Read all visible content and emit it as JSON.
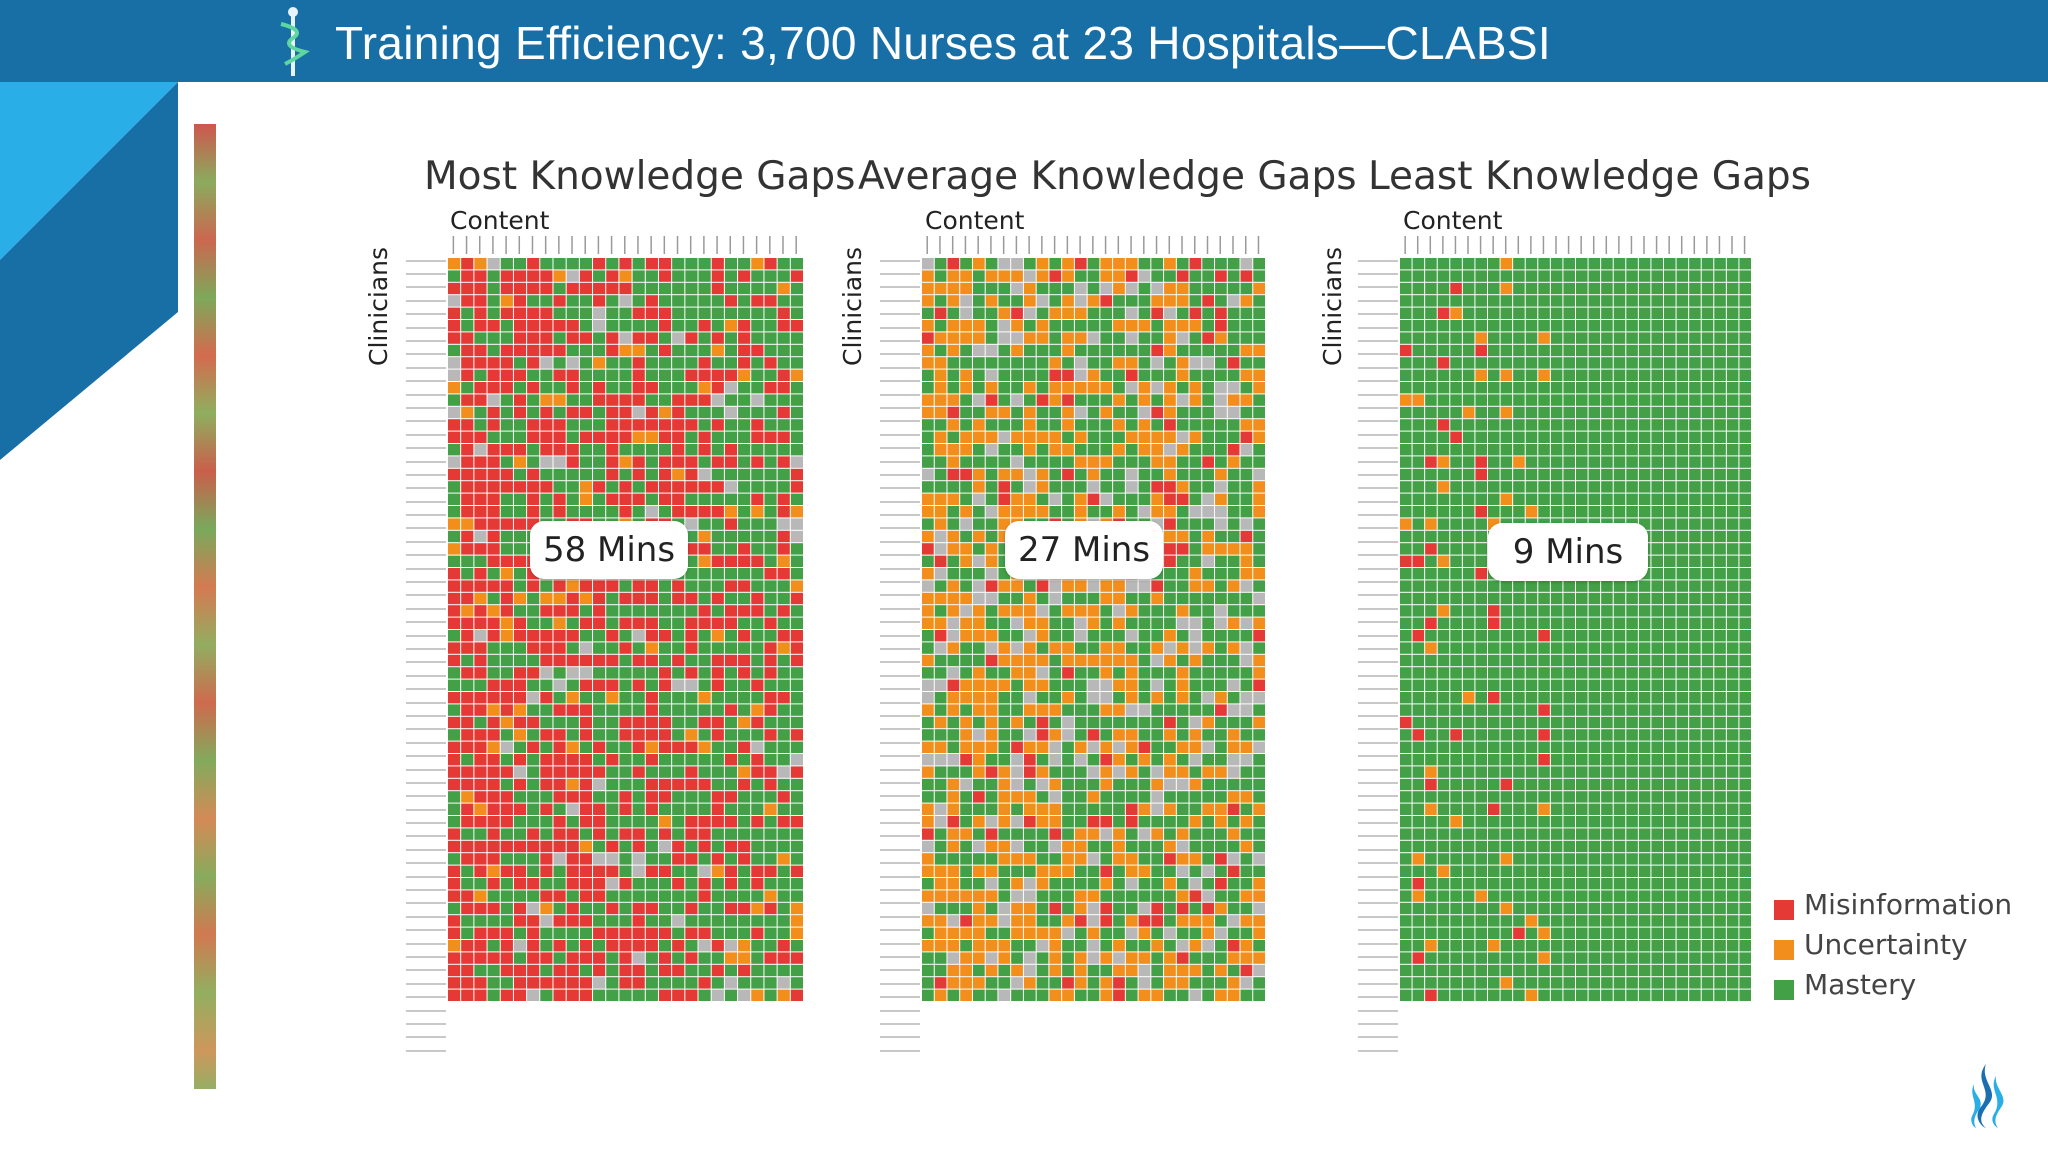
{
  "header": {
    "title": "Training Efficiency: 3,700 Nurses at 23 Hospitals—CLABSI",
    "logo_icon": "caduceus-icon"
  },
  "colors": {
    "header": "#186fa6",
    "corner_light": "#2aaee8",
    "corner_dark": "#186fa6",
    "misinformation": "#e53935",
    "uncertainty": "#f28e1c",
    "mastery": "#43a047",
    "unanswered": "#b8b8b8"
  },
  "panels": [
    {
      "title": "Most Knowledge Gaps",
      "content_label": "Content",
      "clinicians_label": "Clinicians",
      "time": "58 Mins",
      "mix": {
        "misinformation": 0.6,
        "uncertainty": 0.07,
        "mastery": 0.28,
        "unanswered": 0.05
      }
    },
    {
      "title": "Average Knowledge Gaps",
      "content_label": "Content",
      "clinicians_label": "Clinicians",
      "time": "27 Mins",
      "mix": {
        "misinformation": 0.07,
        "uncertainty": 0.45,
        "mastery": 0.35,
        "unanswered": 0.13
      }
    },
    {
      "title": "Least Knowledge Gaps",
      "content_label": "Content",
      "clinicians_label": "Clinicians",
      "time": "9 Mins",
      "mix": {
        "misinformation": 0.02,
        "uncertainty": 0.02,
        "mastery": 0.96,
        "unanswered": 0.0
      }
    }
  ],
  "legend": [
    {
      "label": "Misinformation",
      "color": "#e53935"
    },
    {
      "label": "Uncertainty",
      "color": "#f28e1c"
    },
    {
      "label": "Mastery",
      "color": "#43a047"
    }
  ],
  "brand_icon": "flame-logo-icon"
}
